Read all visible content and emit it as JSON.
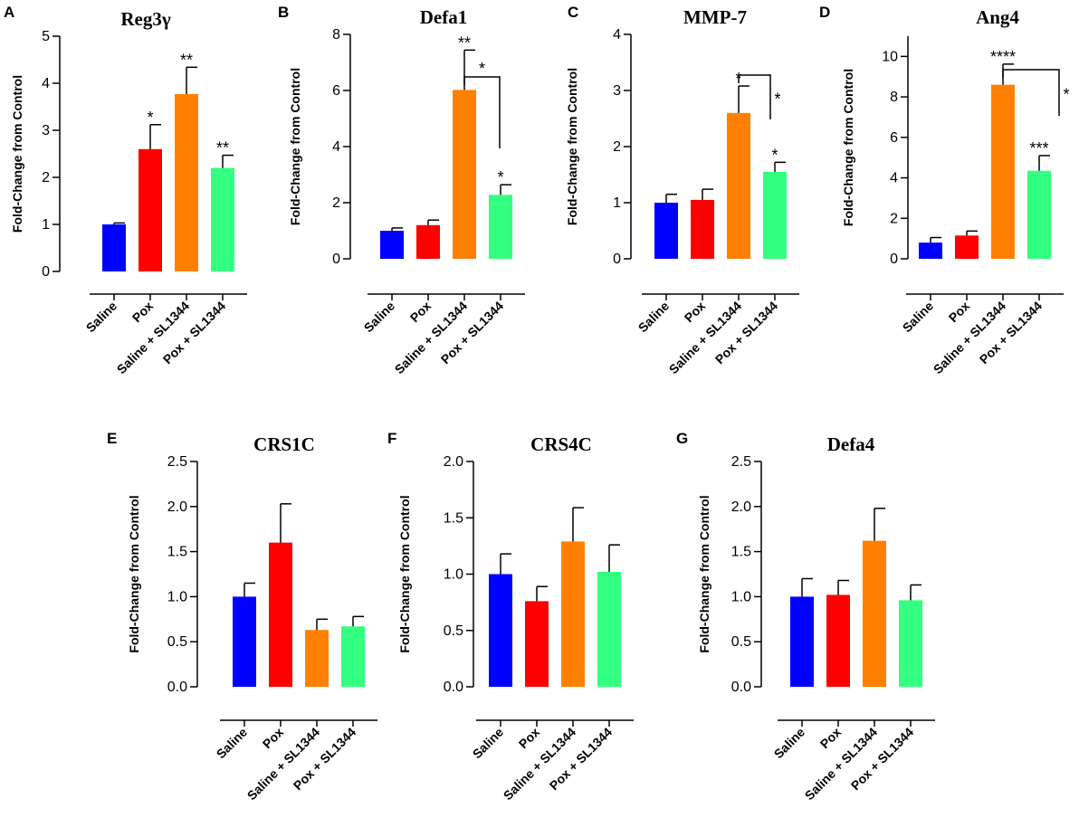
{
  "figure": {
    "categories": [
      "Saline",
      "Pox",
      "Saline + SL1344",
      "Pox + SL1344"
    ],
    "colors": [
      "#0000ff",
      "#ff0000",
      "#ff8000",
      "#33ff80"
    ],
    "ylabel": "Fold-Change from Control"
  },
  "chart_data": [
    {
      "type": "bar",
      "panel": "A",
      "title": "Reg3γ",
      "categories": [
        "Saline",
        "Pox",
        "Saline + SL1344",
        "Pox + SL1344"
      ],
      "values": [
        1.0,
        2.6,
        3.77,
        2.2
      ],
      "errors": [
        0.03,
        0.52,
        0.57,
        0.27
      ],
      "ylim": [
        0,
        5
      ],
      "yticks": [
        0,
        1,
        2,
        3,
        4,
        5
      ],
      "tick_labels": [
        "0",
        "1",
        "2",
        "3",
        "4",
        "5"
      ],
      "ylabel": "Fold-Change from Control",
      "annotations": [
        "",
        "*",
        "**",
        "**"
      ],
      "brackets": []
    },
    {
      "type": "bar",
      "panel": "B",
      "title": "Defa1",
      "categories": [
        "Saline",
        "Pox",
        "Saline + SL1344",
        "Pox + SL1344"
      ],
      "values": [
        1.0,
        1.2,
        6.02,
        2.28
      ],
      "errors": [
        0.1,
        0.18,
        1.42,
        0.36
      ],
      "ylim": [
        0,
        8
      ],
      "yticks": [
        0,
        2,
        4,
        6,
        8
      ],
      "tick_labels": [
        "0",
        "2",
        "4",
        "6",
        "8"
      ],
      "ylabel": "Fold-Change from Control",
      "annotations": [
        "",
        "",
        "**",
        "*"
      ],
      "brackets": [
        {
          "from": 2,
          "to": 3,
          "label": "*"
        }
      ]
    },
    {
      "type": "bar",
      "panel": "C",
      "title": "MMP-7",
      "categories": [
        "Saline",
        "Pox",
        "Saline + SL1344",
        "Pox + SL1344"
      ],
      "values": [
        1.0,
        1.05,
        2.6,
        1.55
      ],
      "errors": [
        0.15,
        0.19,
        0.48,
        0.17
      ],
      "ylim": [
        0,
        4
      ],
      "yticks": [
        0,
        1,
        2,
        3,
        4
      ],
      "tick_labels": [
        "0",
        "1",
        "2",
        "3",
        "4"
      ],
      "ylabel": "Fold-Change from Control",
      "annotations": [
        "",
        "",
        "*",
        "*"
      ],
      "brackets": [
        {
          "from": 2,
          "to": 3,
          "label": "*"
        }
      ]
    },
    {
      "type": "bar",
      "panel": "D",
      "title": "Ang4",
      "categories": [
        "Saline",
        "Pox",
        "Saline + SL1344",
        "Pox + SL1344"
      ],
      "values": [
        0.8,
        1.15,
        8.6,
        4.35
      ],
      "errors": [
        0.25,
        0.22,
        1.02,
        0.75
      ],
      "ylim": [
        0,
        11
      ],
      "yticks": [
        0,
        2,
        4,
        6,
        8,
        10
      ],
      "tick_labels": [
        "0",
        "2",
        "4",
        "6",
        "8",
        "10"
      ],
      "ylabel": "Fold-Change from Control",
      "annotations": [
        "",
        "",
        "****",
        "***"
      ],
      "brackets": [
        {
          "from": 2,
          "to": 3,
          "label": "*"
        }
      ]
    },
    {
      "type": "bar",
      "panel": "E",
      "title": "CRS1C",
      "categories": [
        "Saline",
        "Pox",
        "Saline + SL1344",
        "Pox + SL1344"
      ],
      "values": [
        1.0,
        1.6,
        0.63,
        0.67
      ],
      "errors": [
        0.15,
        0.43,
        0.12,
        0.11
      ],
      "ylim": [
        0,
        2.5
      ],
      "yticks": [
        0,
        0.5,
        1.0,
        1.5,
        2.0,
        2.5
      ],
      "tick_labels": [
        "0.0",
        "0.5",
        "1.0",
        "1.5",
        "2.0",
        "2.5"
      ],
      "ylabel": "Fold-Change from Control",
      "annotations": [
        "",
        "",
        "",
        ""
      ],
      "brackets": []
    },
    {
      "type": "bar",
      "panel": "F",
      "title": "CRS4C",
      "categories": [
        "Saline",
        "Pox",
        "Saline + SL1344",
        "Pox + SL1344"
      ],
      "values": [
        1.0,
        0.76,
        1.29,
        1.02
      ],
      "errors": [
        0.18,
        0.13,
        0.3,
        0.24
      ],
      "ylim": [
        0,
        2.0
      ],
      "yticks": [
        0,
        0.5,
        1.0,
        1.5,
        2.0
      ],
      "tick_labels": [
        "0.0",
        "0.5",
        "1.0",
        "1.5",
        "2.0"
      ],
      "ylabel": "Fold-Change from Control",
      "annotations": [
        "",
        "",
        "",
        ""
      ],
      "brackets": []
    },
    {
      "type": "bar",
      "panel": "G",
      "title": "Defa4",
      "categories": [
        "Saline",
        "Pox",
        "Saline + SL1344",
        "Pox + SL1344"
      ],
      "values": [
        1.0,
        1.02,
        1.62,
        0.96
      ],
      "errors": [
        0.2,
        0.16,
        0.36,
        0.17
      ],
      "ylim": [
        0,
        2.5
      ],
      "yticks": [
        0,
        0.5,
        1.0,
        1.5,
        2.0,
        2.5
      ],
      "tick_labels": [
        "0.0",
        "0.5",
        "1.0",
        "1.5",
        "2.0",
        "2.5"
      ],
      "ylabel": "Fold-Change from Control",
      "annotations": [
        "",
        "",
        "",
        ""
      ],
      "brackets": []
    }
  ]
}
